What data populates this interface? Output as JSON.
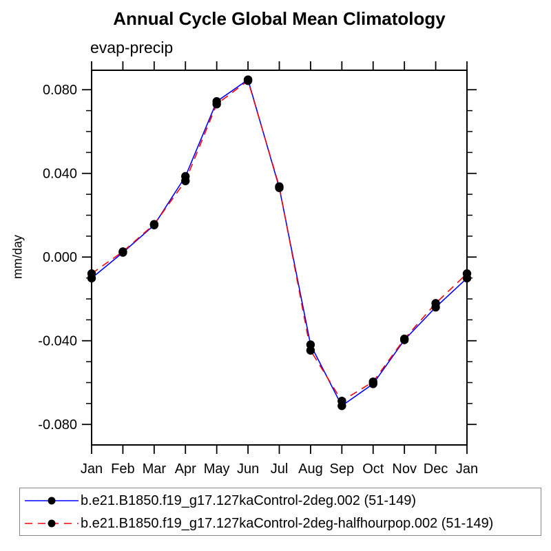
{
  "chart_data": {
    "type": "line",
    "title": "Annual Cycle Global Mean Climatology",
    "subtitle": "evap-precip",
    "ylabel": "mm/day",
    "xlabel": "",
    "categories": [
      "Jan",
      "Feb",
      "Mar",
      "Apr",
      "May",
      "Jun",
      "Jul",
      "Aug",
      "Sep",
      "Oct",
      "Nov",
      "Dec",
      "Jan"
    ],
    "ylim": [
      -0.0898,
      0.0893
    ],
    "ytick_major": [
      0.08,
      0.04,
      0.0,
      -0.04,
      -0.08
    ],
    "ytick_labels": [
      "0.080",
      "0.040",
      "0.000",
      "-0.040",
      "-0.080"
    ],
    "ytick_minor_step": 0.01,
    "grid": false,
    "legend_position": "bottom-left-box",
    "axis_color": "#000000",
    "series": [
      {
        "name": "b.e21.B1850.f19_g17.127kaControl-2deg.002 (51-149)",
        "color": "#0000ff",
        "style": "solid",
        "marker": "filled-circle",
        "marker_color": "#000000",
        "values": [
          -0.0101,
          0.0022,
          0.0153,
          0.0386,
          0.0744,
          0.0848,
          0.0331,
          -0.0419,
          -0.0711,
          -0.0606,
          -0.0396,
          -0.024,
          -0.0101
        ]
      },
      {
        "name": "b.e21.B1850.f19_g17.127kaControl-2deg-halfhourpop.002 (51-149)",
        "color": "#ff0000",
        "style": "dashed",
        "marker": "filled-circle",
        "marker_color": "#000000",
        "values": [
          -0.0079,
          0.0026,
          0.0157,
          0.0364,
          0.0731,
          0.0843,
          0.0337,
          -0.0446,
          -0.0688,
          -0.0596,
          -0.0391,
          -0.0221,
          -0.0079
        ]
      }
    ]
  }
}
